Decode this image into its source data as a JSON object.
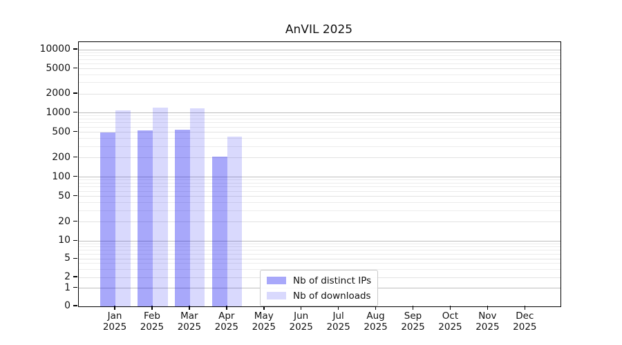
{
  "chart_data": {
    "type": "bar",
    "title": "AnVIL 2025",
    "x_axis": {
      "categories": [
        "Jan",
        "Feb",
        "Mar",
        "Apr",
        "May",
        "Jun",
        "Jul",
        "Aug",
        "Sep",
        "Oct",
        "Nov",
        "Dec"
      ],
      "year_line": "2025"
    },
    "y_axis": {
      "scale": "symlog",
      "ticks": [
        10000,
        5000,
        2000,
        1000,
        500,
        200,
        100,
        50,
        20,
        10,
        5,
        2,
        1,
        0
      ],
      "range": [
        0,
        13000
      ],
      "grid": "on"
    },
    "series": [
      {
        "name": "Nb of distinct IPs",
        "color": "rgba(0,0,240,0.34)",
        "values": [
          500,
          530,
          540,
          210,
          null,
          null,
          null,
          null,
          null,
          null,
          null,
          null
        ]
      },
      {
        "name": "Nb of downloads",
        "color": "rgba(0,0,240,0.15)",
        "values": [
          1090,
          1200,
          1170,
          425,
          null,
          null,
          null,
          null,
          null,
          null,
          null,
          null
        ]
      }
    ],
    "legend": {
      "entries": [
        "Nb of distinct IPs",
        "Nb of downloads"
      ],
      "position": "lower-center-inside"
    }
  }
}
